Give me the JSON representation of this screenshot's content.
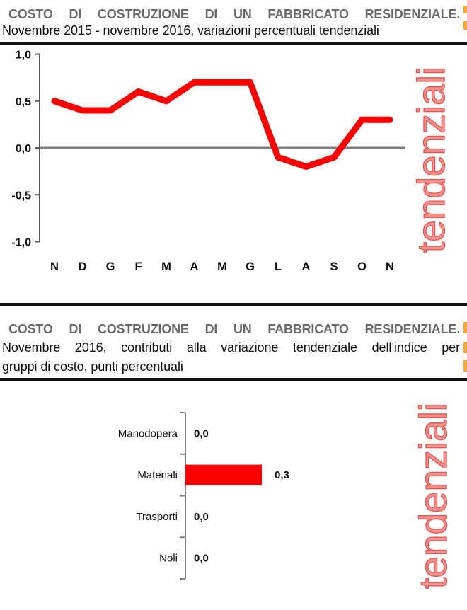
{
  "section1": {
    "title": "COSTO DI COSTRUZIONE DI UN FABBRICATO RESIDENZIALE.",
    "subtitle": "Novembre 2015 - novembre 2016, variazioni percentuali tendenziali",
    "watermark": "tendenziali"
  },
  "section2": {
    "title": "COSTO DI COSTRUZIONE DI UN FABBRICATO RESIDENZIALE.",
    "subtitle_line1": "Novembre 2016, contributi alla variazione tendenziale dell’indice per",
    "subtitle_line2": "gruppi di costo, punti percentuali",
    "watermark": "tendenziali"
  },
  "colors": {
    "series_red": "#fa0000",
    "watermark_red": "#e4534f",
    "title_gray": "#696a6c",
    "axis_gray": "#595959",
    "zero_line_gray": "#7f7f7f",
    "edge_fragment_orange": "#f6a83b"
  },
  "chart_data": [
    {
      "type": "line",
      "title": "COSTO DI COSTRUZIONE DI UN FABBRICATO RESIDENZIALE. Novembre 2015 - novembre 2016, variazioni percentuali tendenziali",
      "x": [
        "N",
        "D",
        "G",
        "F",
        "M",
        "A",
        "M",
        "G",
        "L",
        "A",
        "S",
        "O",
        "N"
      ],
      "values": [
        0.5,
        0.4,
        0.4,
        0.6,
        0.5,
        0.7,
        0.7,
        0.7,
        -0.1,
        -0.2,
        -0.1,
        0.3,
        0.3
      ],
      "y_tick_labels": [
        "1,0",
        "0,5",
        "0,0",
        "-0,5",
        "-1,0"
      ],
      "y_tick_values": [
        1.0,
        0.5,
        0.0,
        -0.5,
        -1.0
      ],
      "ylim": [
        -1.0,
        1.0
      ],
      "zero_line": true,
      "grid": false,
      "legend": "none",
      "line_color": "#fa0000"
    },
    {
      "type": "bar",
      "orientation": "horizontal",
      "title": "COSTO DI COSTRUZIONE DI UN FABBRICATO RESIDENZIALE. Novembre 2016, contributi alla variazione tendenziale dell’indice per gruppi di costo, punti percentuali",
      "categories": [
        "Manodopera",
        "Materiali",
        "Trasporti",
        "Noli"
      ],
      "values": [
        0.0,
        0.3,
        0.0,
        0.0
      ],
      "value_labels": [
        "0,0",
        "0,3",
        "0,0",
        "0,0"
      ],
      "grid": false,
      "legend": "none",
      "bar_color": "#fa0000"
    }
  ]
}
